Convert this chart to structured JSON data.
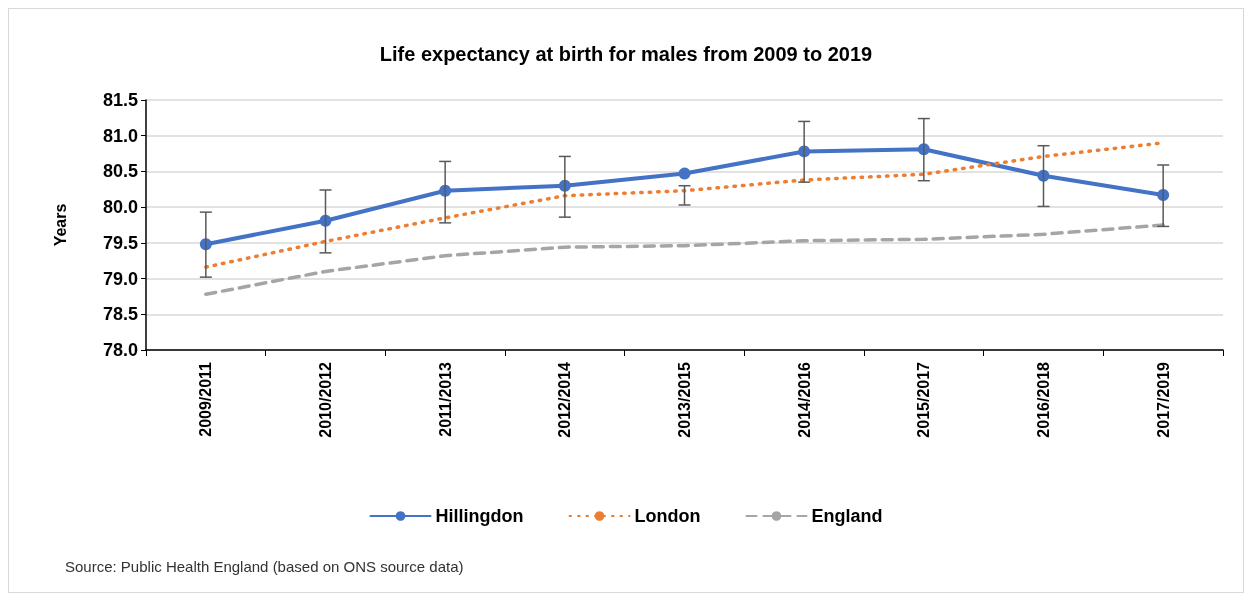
{
  "chart_data": {
    "type": "line",
    "title": "Life expectancy at birth for males from 2009 to 2019",
    "ylabel": "Years",
    "categories": [
      "2009/2011",
      "2010/2012",
      "2011/2013",
      "2012/2014",
      "2013/2015",
      "2014/2016",
      "2015/2017",
      "2016/2018",
      "2017/2019"
    ],
    "series": [
      {
        "name": "Hillingdon",
        "color": "#4472c4",
        "marker": "circle",
        "line_style": "solid",
        "values": [
          79.48,
          79.81,
          80.23,
          80.3,
          80.47,
          80.78,
          80.81,
          80.44,
          80.17
        ],
        "errors": [
          [
            79.02,
            79.93
          ],
          [
            79.36,
            80.24
          ],
          [
            79.78,
            80.64
          ],
          [
            79.86,
            80.71
          ],
          [
            80.03,
            80.3
          ],
          [
            80.35,
            81.2
          ],
          [
            80.37,
            81.24
          ],
          [
            80.01,
            80.86
          ],
          [
            79.73,
            80.59
          ]
        ]
      },
      {
        "name": "London",
        "color": "#ed7d31",
        "marker": "none",
        "line_style": "dotted",
        "values": [
          79.16,
          79.52,
          79.85,
          80.16,
          80.23,
          80.38,
          80.46,
          80.71,
          80.9
        ]
      },
      {
        "name": "England",
        "color": "#a5a5a5",
        "marker": "none",
        "line_style": "dashed",
        "values": [
          78.78,
          79.1,
          79.32,
          79.44,
          79.46,
          79.53,
          79.55,
          79.62,
          79.75
        ]
      }
    ],
    "ylim": [
      78.0,
      81.5
    ],
    "yticks": [
      {
        "value": 78,
        "label": "78.0"
      },
      {
        "value": 78.5,
        "label": "78.5"
      },
      {
        "value": 79,
        "label": "79.0"
      },
      {
        "value": 79.5,
        "label": "79.5"
      },
      {
        "value": 80,
        "label": "80.0"
      },
      {
        "value": 80.5,
        "label": "80.5"
      },
      {
        "value": 81,
        "label": "81.0"
      },
      {
        "value": 81.5,
        "label": "81.5"
      }
    ],
    "grid": "y",
    "legend": "bottom",
    "annotations": [
      "Source: Public Health England (based on ONS source data)"
    ]
  }
}
